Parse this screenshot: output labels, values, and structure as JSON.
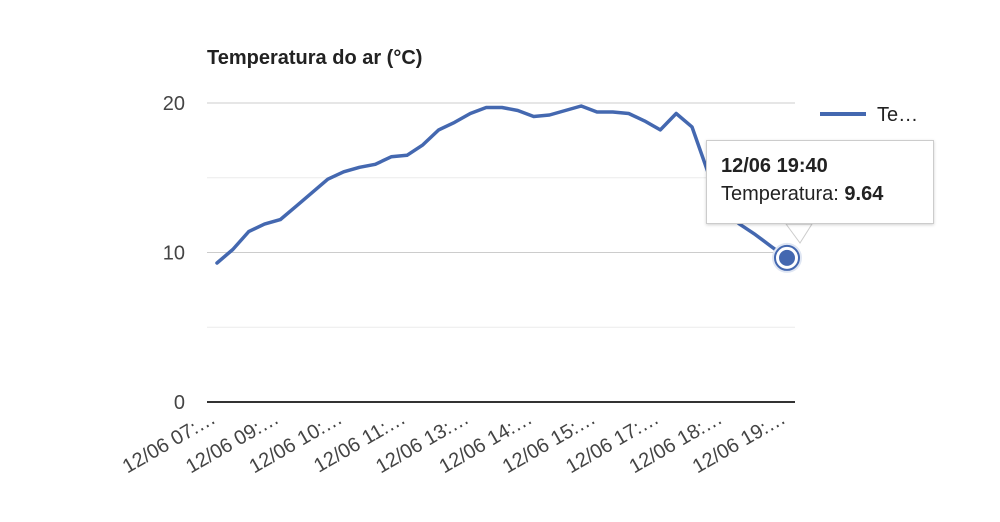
{
  "chart_data": {
    "type": "line",
    "title": "Temperatura do ar (°C)",
    "ylim": [
      0,
      20
    ],
    "yticks": [
      0,
      10,
      20
    ],
    "grid": true,
    "legend_position": "right",
    "legend_label": "Te…",
    "x_tick_labels": [
      "12/06 07:…",
      "12/06 09:…",
      "12/06 10:…",
      "12/06 11:…",
      "12/06 13:…",
      "12/06 14:…",
      "12/06 15:…",
      "12/06 17:…",
      "12/06 18:…",
      "12/06 19:…"
    ],
    "series": [
      {
        "name": "Temperatura",
        "color": "#4468b0",
        "values": [
          9.3,
          10.2,
          11.4,
          11.9,
          12.2,
          13.1,
          14.0,
          14.9,
          15.4,
          15.7,
          15.9,
          16.4,
          16.5,
          17.2,
          18.2,
          18.7,
          19.3,
          19.7,
          19.7,
          19.5,
          19.1,
          19.2,
          19.5,
          19.8,
          19.4,
          19.4,
          19.3,
          18.8,
          18.2,
          19.3,
          18.4,
          15.4,
          12.8,
          11.9,
          11.2,
          10.4,
          9.64
        ]
      }
    ]
  },
  "tooltip": {
    "title": "12/06 19:40",
    "label": "Temperatura:",
    "value": "9.64"
  }
}
